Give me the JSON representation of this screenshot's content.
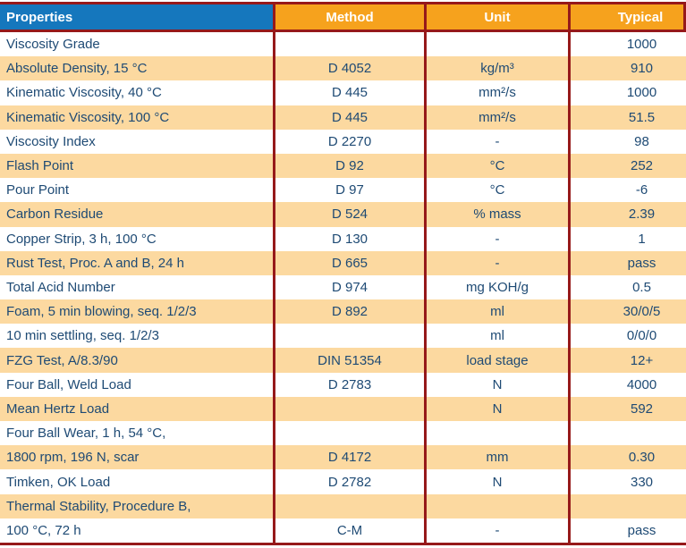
{
  "colors": {
    "accent_blue": "#1577BD",
    "accent_orange": "#F6A21D",
    "row_alt": "#FCD9A0",
    "border_red": "#96191A",
    "text_navy": "#1E4A74",
    "header_text": "#FFFFFF"
  },
  "table": {
    "headers": [
      "Properties",
      "Method",
      "Unit",
      "Typical"
    ],
    "rows": [
      {
        "property": "Viscosity Grade",
        "method": "",
        "unit": "",
        "typical": "1000"
      },
      {
        "property": "Absolute Density, 15 °C",
        "method": "D 4052",
        "unit": "kg/m³",
        "typical": "910"
      },
      {
        "property": "Kinematic Viscosity, 40 °C",
        "method": "D 445",
        "unit": "mm²/s",
        "typical": "1000"
      },
      {
        "property": "Kinematic Viscosity, 100 °C",
        "method": "D 445",
        "unit": "mm²/s",
        "typical": "51.5"
      },
      {
        "property": "Viscosity Index",
        "method": "D 2270",
        "unit": "-",
        "typical": "98"
      },
      {
        "property": "Flash Point",
        "method": "D 92",
        "unit": "°C",
        "typical": "252"
      },
      {
        "property": "Pour Point",
        "method": "D 97",
        "unit": "°C",
        "typical": "-6"
      },
      {
        "property": "Carbon Residue",
        "method": "D 524",
        "unit": "% mass",
        "typical": "2.39"
      },
      {
        "property": "Copper Strip, 3 h, 100 °C",
        "method": "D 130",
        "unit": "-",
        "typical": "1"
      },
      {
        "property": "Rust Test, Proc. A and B, 24 h",
        "method": "D 665",
        "unit": "-",
        "typical": "pass"
      },
      {
        "property": "Total Acid Number",
        "method": "D 974",
        "unit": "mg KOH/g",
        "typical": "0.5"
      },
      {
        "property": "Foam, 5 min blowing, seq. 1/2/3",
        "method": "D 892",
        "unit": "ml",
        "typical": "30/0/5"
      },
      {
        "property": "10 min settling, seq. 1/2/3",
        "method": "",
        "unit": "ml",
        "typical": "0/0/0"
      },
      {
        "property": "FZG Test, A/8.3/90",
        "method": "DIN 51354",
        "unit": "load stage",
        "typical": "12+"
      },
      {
        "property": "Four Ball, Weld Load",
        "method": "D 2783",
        "unit": "N",
        "typical": "4000"
      },
      {
        "property": "Mean Hertz Load",
        "method": "",
        "unit": "N",
        "typical": "592"
      },
      {
        "property": "Four Ball Wear, 1 h, 54 °C,",
        "method": "",
        "unit": "",
        "typical": ""
      },
      {
        "property": "1800 rpm, 196 N, scar",
        "method": "D 4172",
        "unit": "mm",
        "typical": "0.30"
      },
      {
        "property": "Timken, OK Load",
        "method": "D 2782",
        "unit": "N",
        "typical": "330"
      },
      {
        "property": "Thermal Stability, Procedure B,",
        "method": "",
        "unit": "",
        "typical": ""
      },
      {
        "property": "100 °C, 72 h",
        "method": "C-M",
        "unit": "-",
        "typical": "pass"
      }
    ]
  }
}
